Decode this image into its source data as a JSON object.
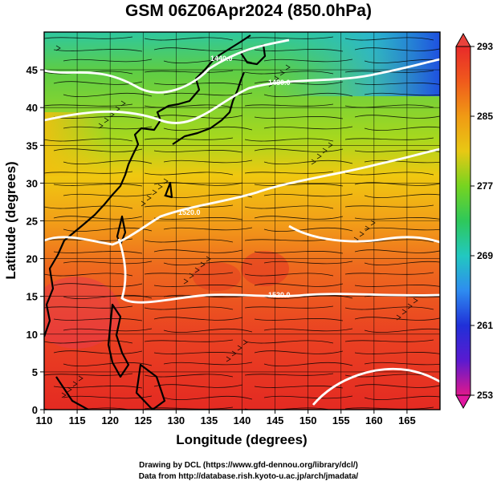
{
  "title": "GSM 06Z06Apr2024 (850.0hPa)",
  "x_axis": {
    "label": "Longitude (degrees)",
    "range": [
      110,
      170
    ],
    "ticks": [
      "110",
      "115",
      "120",
      "125",
      "130",
      "135",
      "140",
      "145",
      "150",
      "155",
      "160",
      "165"
    ]
  },
  "y_axis": {
    "label": "Latitude (degrees)",
    "range": [
      0,
      50
    ],
    "ticks": [
      "0",
      "5",
      "10",
      "15",
      "20",
      "25",
      "30",
      "35",
      "40",
      "45"
    ]
  },
  "colorbar": {
    "range": [
      253,
      293
    ],
    "ticks": [
      "293",
      "285",
      "277",
      "269",
      "261",
      "253"
    ],
    "colors": [
      "#e0188c",
      "#5a1ad0",
      "#2030d8",
      "#2e8cf0",
      "#22c8c0",
      "#2ec85a",
      "#76d420",
      "#e8c814",
      "#f09a14",
      "#f05a1c",
      "#e82a2a"
    ]
  },
  "contour_labels": [
    "1440.0",
    "1480.0",
    "1520.0",
    "1520.0"
  ],
  "credits": {
    "line1": "Drawing by DCL (https://www.gfd-dennou.org/library/dcl/)",
    "line2": "Data from http://database.rish.kyoto-u.ac.jp/arch/jmadata/"
  }
}
